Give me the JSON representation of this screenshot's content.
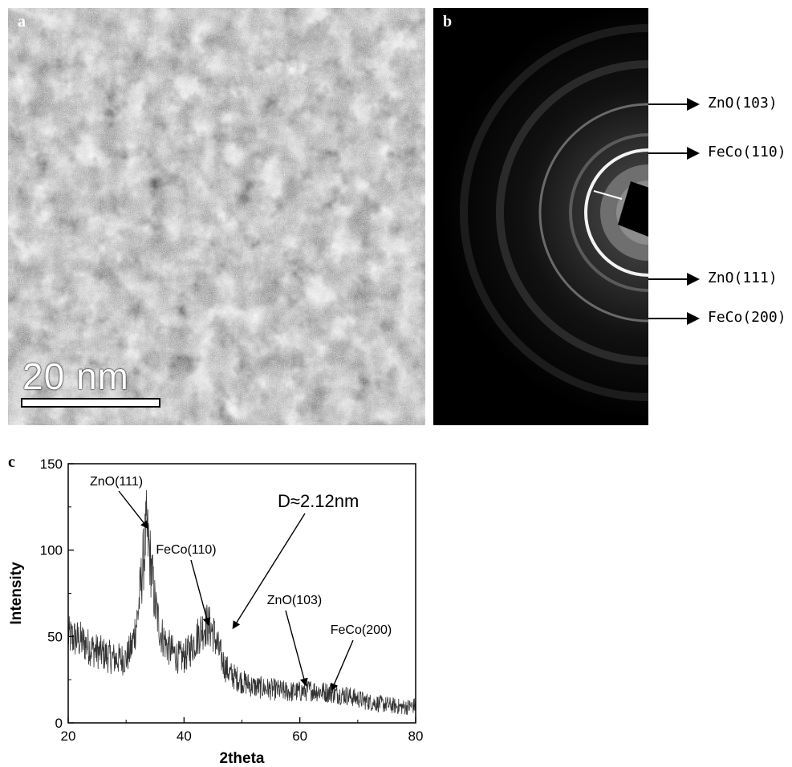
{
  "panel_a": {
    "letter": "a",
    "scale_bar_label": "20 nm"
  },
  "panel_b": {
    "letter": "b",
    "ring_labels": [
      "ZnO(103)",
      "FeCo(110)",
      "ZnO(111)",
      "FeCo(200)"
    ]
  },
  "panel_c": {
    "letter": "c"
  },
  "chart_data": {
    "type": "line",
    "xlabel": "2theta",
    "ylabel": "Intensity",
    "xlim": [
      20,
      80
    ],
    "ylim": [
      0,
      150
    ],
    "x_ticks": [
      20,
      40,
      60,
      80
    ],
    "y_ticks": [
      0,
      50,
      100,
      150
    ],
    "grid": false,
    "series": [
      {
        "x": [
          20,
          22,
          24,
          26,
          28,
          30,
          31,
          32,
          33,
          33.5,
          34,
          35,
          36,
          37,
          38,
          39,
          40,
          41,
          42,
          43,
          44,
          45,
          46,
          47,
          48,
          50,
          52,
          54,
          56,
          58,
          60,
          62,
          64,
          66,
          68,
          70,
          72,
          74,
          76,
          78,
          80
        ],
        "y": [
          50,
          48,
          43,
          40,
          37,
          37,
          44,
          62,
          95,
          112,
          100,
          68,
          52,
          45,
          41,
          38,
          38,
          42,
          48,
          54,
          57,
          53,
          42,
          33,
          28,
          24,
          21,
          20,
          19,
          18,
          18,
          19,
          18,
          17,
          16,
          14,
          12,
          11,
          10,
          9,
          10
        ],
        "color": "#333333"
      }
    ],
    "annotations": [
      {
        "text": "ZnO(111)",
        "x": 33.7,
        "y": 113
      },
      {
        "text": "FeCo(110)",
        "x": 44.2,
        "y": 57
      },
      {
        "text": "D≈2.12nm",
        "x": 48.5,
        "y": 55
      },
      {
        "text": "ZnO(103)",
        "x": 61,
        "y": 22
      },
      {
        "text": "FeCo(200)",
        "x": 65.5,
        "y": 19
      }
    ]
  }
}
